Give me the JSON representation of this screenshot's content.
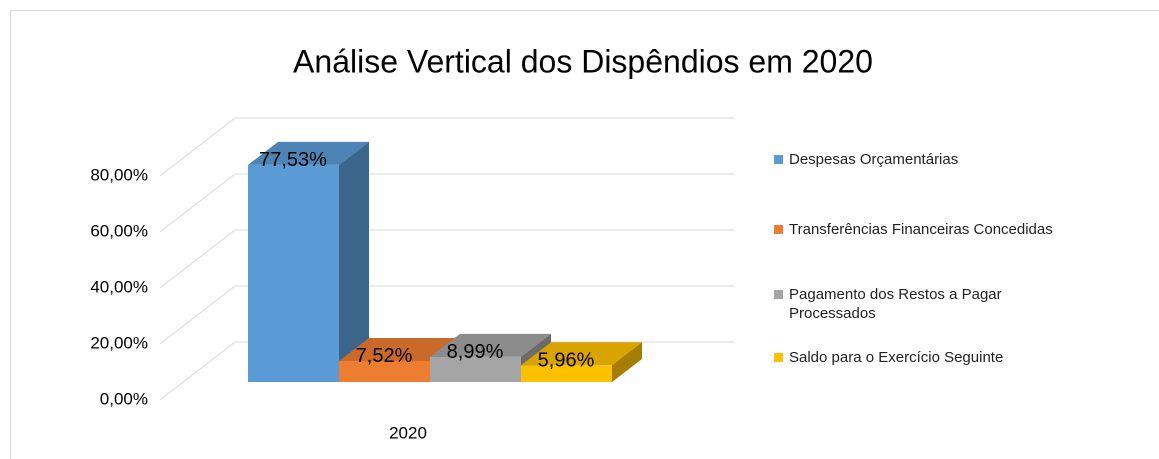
{
  "chart_data": {
    "type": "bar3d",
    "title": "Análise Vertical dos Dispêndios em 2020",
    "categories": [
      "2020"
    ],
    "series": [
      {
        "name": "Despesas Orçamentárias",
        "color": "#5b9bd5",
        "values": [
          77.53
        ],
        "value_labels": [
          "77,53%"
        ]
      },
      {
        "name": "Transferências Financeiras Concedidas",
        "color": "#ed7d31",
        "values": [
          7.52
        ],
        "value_labels": [
          "7,52%"
        ]
      },
      {
        "name": "Pagamento dos Restos a Pagar Processados",
        "color": "#a5a5a5",
        "values": [
          8.99
        ],
        "value_labels": [
          "8,99%"
        ]
      },
      {
        "name": "Saldo para o Exercício Seguinte",
        "color": "#ffc000",
        "values": [
          5.96
        ],
        "value_labels": [
          "5,96%"
        ]
      }
    ],
    "ylim": [
      0,
      80
    ],
    "yticks": [
      {
        "value": 0,
        "label": "0,00%"
      },
      {
        "value": 20,
        "label": "20,00%"
      },
      {
        "value": 40,
        "label": "40,00%"
      },
      {
        "value": 60,
        "label": "60,00%"
      },
      {
        "value": 80,
        "label": "80,00%"
      }
    ],
    "grid": true,
    "legend": "right"
  }
}
